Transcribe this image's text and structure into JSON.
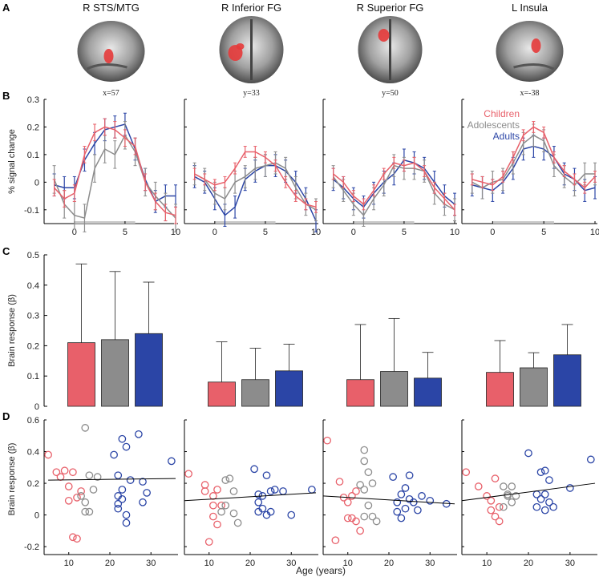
{
  "figure": {
    "panel_letters": [
      "A",
      "B",
      "C",
      "D"
    ],
    "regions": [
      {
        "name": "R STS/MTG",
        "coord": "x=57",
        "view": "sagittal-right"
      },
      {
        "name": "R Inferior FG",
        "coord": "y=33",
        "view": "coronal"
      },
      {
        "name": "R Superior FG",
        "coord": "y=50",
        "view": "coronal"
      },
      {
        "name": "L Insula",
        "coord": "x=-38",
        "view": "sagittal-left"
      }
    ],
    "groups": [
      {
        "name": "Children",
        "color": "#e8606a"
      },
      {
        "name": "Adolescents",
        "color": "#8c8c8c"
      },
      {
        "name": "Adults",
        "color": "#2b45a6"
      }
    ]
  },
  "chart_data": [
    {
      "panel": "B",
      "type": "line",
      "ylabel": "% signal change",
      "xlabel": "",
      "x": [
        -2,
        -1,
        0,
        1,
        2,
        3,
        4,
        5,
        6,
        7,
        8,
        9,
        10
      ],
      "xticks": [
        0,
        5,
        10
      ],
      "ylim": [
        -0.15,
        0.3
      ],
      "yticks": [
        -0.1,
        0,
        0.1,
        0.2,
        0.3
      ],
      "stim_interval": [
        0,
        6
      ],
      "subplots": [
        {
          "region": "R STS/MTG",
          "series": [
            {
              "name": "Children",
              "values": [
                -0.02,
                -0.06,
                -0.04,
                0.1,
                0.18,
                0.2,
                0.19,
                0.16,
                0.13,
                0.0,
                -0.07,
                -0.11,
                -0.12
              ],
              "err": 0.03
            },
            {
              "name": "Adolescents",
              "values": [
                0.01,
                -0.08,
                -0.12,
                -0.13,
                0.05,
                0.12,
                0.1,
                0.17,
                0.11,
                0.0,
                -0.05,
                -0.09,
                -0.13
              ],
              "err": 0.05
            },
            {
              "name": "Adults",
              "values": [
                -0.01,
                -0.02,
                -0.02,
                0.08,
                0.14,
                0.19,
                0.2,
                0.21,
                0.12,
                0.01,
                -0.07,
                -0.05,
                -0.05
              ],
              "err": 0.04
            }
          ]
        },
        {
          "region": "R Inferior FG",
          "series": [
            {
              "name": "Children",
              "values": [
                0.03,
                0.01,
                -0.01,
                0.0,
                0.05,
                0.11,
                0.11,
                0.09,
                0.06,
                0.0,
                -0.05,
                -0.08,
                -0.09
              ],
              "err": 0.02
            },
            {
              "name": "Adolescents",
              "values": [
                0.03,
                0.01,
                -0.04,
                -0.06,
                0.0,
                0.02,
                0.05,
                0.06,
                0.07,
                0.05,
                -0.02,
                -0.08,
                -0.1
              ],
              "err": 0.04
            },
            {
              "name": "Adults",
              "values": [
                0.02,
                0.0,
                -0.06,
                -0.12,
                -0.09,
                0.01,
                0.04,
                0.06,
                0.06,
                0.04,
                0.0,
                -0.06,
                -0.14
              ],
              "err": 0.04
            }
          ]
        },
        {
          "region": "R Superior FG",
          "series": [
            {
              "name": "Children",
              "values": [
                0.03,
                0.0,
                -0.05,
                -0.08,
                -0.03,
                0.03,
                0.07,
                0.06,
                0.07,
                0.04,
                -0.02,
                -0.06,
                -0.1
              ],
              "err": 0.02
            },
            {
              "name": "Adolescents",
              "values": [
                0.02,
                -0.03,
                -0.08,
                -0.12,
                -0.06,
                -0.01,
                0.06,
                0.05,
                0.05,
                0.04,
                -0.04,
                -0.08,
                -0.1
              ],
              "err": 0.04
            },
            {
              "name": "Adults",
              "values": [
                0.01,
                -0.02,
                -0.06,
                -0.09,
                -0.04,
                0.0,
                0.03,
                0.08,
                0.07,
                0.05,
                0.0,
                -0.05,
                -0.08
              ],
              "err": 0.04
            }
          ]
        },
        {
          "region": "L Insula",
          "series": [
            {
              "name": "Children",
              "values": [
                0.01,
                0.0,
                -0.01,
                0.02,
                0.09,
                0.17,
                0.2,
                0.18,
                0.09,
                0.04,
                0.01,
                -0.02,
                0.02
              ],
              "err": 0.02
            },
            {
              "name": "Adolescents",
              "values": [
                0.0,
                -0.02,
                0.0,
                0.01,
                0.07,
                0.14,
                0.17,
                0.15,
                0.06,
                0.02,
                -0.01,
                0.03,
                0.03
              ],
              "err": 0.04
            },
            {
              "name": "Adults",
              "values": [
                -0.01,
                -0.02,
                -0.03,
                0.0,
                0.05,
                0.12,
                0.13,
                0.12,
                0.09,
                0.03,
                0.01,
                -0.03,
                -0.02
              ],
              "err": 0.04
            }
          ]
        }
      ]
    },
    {
      "panel": "C",
      "type": "bar",
      "ylabel": "Brain response (β)",
      "ylim": [
        0,
        0.5
      ],
      "yticks": [
        0,
        0.1,
        0.2,
        0.3,
        0.4,
        0.5
      ],
      "categories": [
        "Children",
        "Adolescents",
        "Adults"
      ],
      "subplots": [
        {
          "region": "R STS/MTG",
          "values": [
            0.21,
            0.22,
            0.24
          ],
          "err": [
            0.26,
            0.225,
            0.17
          ]
        },
        {
          "region": "R Inferior FG",
          "values": [
            0.08,
            0.088,
            0.117
          ],
          "err": [
            0.133,
            0.104,
            0.088
          ]
        },
        {
          "region": "R Superior FG",
          "values": [
            0.088,
            0.115,
            0.093
          ],
          "err": [
            0.182,
            0.175,
            0.085
          ]
        },
        {
          "region": "L Insula",
          "values": [
            0.112,
            0.127,
            0.17
          ],
          "err": [
            0.105,
            0.05,
            0.1
          ]
        }
      ]
    },
    {
      "panel": "D",
      "type": "scatter",
      "ylabel": "Brain response (β)",
      "xlabel": "Age (years)",
      "xlim": [
        4,
        36
      ],
      "xticks": [
        10,
        20,
        30
      ],
      "ylim": [
        -0.25,
        0.6
      ],
      "yticks": [
        -0.2,
        0,
        0.2,
        0.4,
        0.6
      ],
      "subplots": [
        {
          "region": "R STS/MTG",
          "fit": [
            [
              5,
              0.22
            ],
            [
              36,
              0.23
            ]
          ],
          "points": {
            "Children": [
              [
                5,
                0.38
              ],
              [
                7,
                0.27
              ],
              [
                8,
                0.24
              ],
              [
                9,
                0.28
              ],
              [
                10,
                0.18
              ],
              [
                11,
                0.27
              ],
              [
                10,
                0.09
              ],
              [
                11,
                -0.14
              ],
              [
                12,
                -0.15
              ],
              [
                12,
                0.11
              ],
              [
                13,
                0.15
              ]
            ],
            "Adolescents": [
              [
                14,
                0.55
              ],
              [
                15,
                0.25
              ],
              [
                16,
                0.16
              ],
              [
                14,
                0.08
              ],
              [
                13,
                0.12
              ],
              [
                15,
                0.02
              ],
              [
                14,
                0.02
              ],
              [
                17,
                0.24
              ]
            ],
            "Adults": [
              [
                21,
                0.38
              ],
              [
                22,
                0.25
              ],
              [
                23,
                0.48
              ],
              [
                24,
                0.43
              ],
              [
                27,
                0.51
              ],
              [
                23,
                0.16
              ],
              [
                25,
                0.22
              ],
              [
                22,
                0.12
              ],
              [
                23,
                0.1
              ],
              [
                22,
                0.07
              ],
              [
                22,
                0.04
              ],
              [
                24,
                0.0
              ],
              [
                24,
                -0.05
              ],
              [
                28,
                0.21
              ],
              [
                29,
                0.14
              ],
              [
                28,
                0.08
              ],
              [
                35,
                0.34
              ]
            ]
          }
        },
        {
          "region": "R Inferior FG",
          "fit": [
            [
              4,
              0.09
            ],
            [
              36,
              0.14
            ]
          ],
          "points": {
            "Children": [
              [
                5,
                0.26
              ],
              [
                9,
                0.19
              ],
              [
                9,
                0.15
              ],
              [
                11,
                0.12
              ],
              [
                11,
                0.06
              ],
              [
                12,
                0.16
              ],
              [
                11,
                -0.01
              ],
              [
                12,
                -0.06
              ],
              [
                10,
                -0.17
              ],
              [
                13,
                0.06
              ]
            ],
            "Adolescents": [
              [
                14,
                0.22
              ],
              [
                15,
                0.23
              ],
              [
                16,
                0.15
              ],
              [
                14,
                0.06
              ],
              [
                16,
                0.01
              ],
              [
                17,
                -0.05
              ],
              [
                13,
                0.02
              ]
            ],
            "Adults": [
              [
                21,
                0.29
              ],
              [
                24,
                0.25
              ],
              [
                22,
                0.13
              ],
              [
                23,
                0.12
              ],
              [
                25,
                0.15
              ],
              [
                26,
                0.16
              ],
              [
                22,
                0.08
              ],
              [
                23,
                0.04
              ],
              [
                25,
                0.02
              ],
              [
                22,
                0.02
              ],
              [
                24,
                0.0
              ],
              [
                28,
                0.15
              ],
              [
                30,
                0.0
              ],
              [
                35,
                0.16
              ]
            ]
          }
        },
        {
          "region": "R Superior FG",
          "fit": [
            [
              4,
              0.12
            ],
            [
              36,
              0.07
            ]
          ],
          "points": {
            "Children": [
              [
                5,
                0.47
              ],
              [
                8,
                0.21
              ],
              [
                9,
                0.11
              ],
              [
                10,
                0.08
              ],
              [
                10,
                -0.02
              ],
              [
                11,
                -0.02
              ],
              [
                7,
                -0.16
              ],
              [
                12,
                -0.04
              ],
              [
                12,
                0.15
              ],
              [
                11,
                0.12
              ],
              [
                13,
                -0.1
              ]
            ],
            "Adolescents": [
              [
                14,
                0.41
              ],
              [
                14,
                0.34
              ],
              [
                15,
                0.27
              ],
              [
                13,
                0.19
              ],
              [
                16,
                0.2
              ],
              [
                14,
                0.16
              ],
              [
                15,
                0.06
              ],
              [
                16,
                -0.01
              ],
              [
                14,
                -0.01
              ],
              [
                17,
                -0.04
              ]
            ],
            "Adults": [
              [
                21,
                0.24
              ],
              [
                25,
                0.25
              ],
              [
                23,
                0.13
              ],
              [
                24,
                0.17
              ],
              [
                22,
                0.08
              ],
              [
                25,
                0.1
              ],
              [
                26,
                0.08
              ],
              [
                22,
                0.02
              ],
              [
                24,
                0.04
              ],
              [
                27,
                0.03
              ],
              [
                23,
                -0.02
              ],
              [
                28,
                0.12
              ],
              [
                30,
                0.09
              ],
              [
                34,
                0.07
              ]
            ]
          }
        },
        {
          "region": "L Insula",
          "fit": [
            [
              4,
              0.09
            ],
            [
              36,
              0.2
            ]
          ],
          "points": {
            "Children": [
              [
                5,
                0.27
              ],
              [
                8,
                0.18
              ],
              [
                10,
                0.12
              ],
              [
                11,
                0.09
              ],
              [
                12,
                0.23
              ],
              [
                11,
                0.03
              ],
              [
                12,
                -0.01
              ],
              [
                13,
                0.05
              ],
              [
                13,
                -0.04
              ]
            ],
            "Adolescents": [
              [
                14,
                0.18
              ],
              [
                16,
                0.18
              ],
              [
                15,
                0.13
              ],
              [
                15,
                0.12
              ],
              [
                17,
                0.12
              ],
              [
                16,
                0.08
              ],
              [
                14,
                0.05
              ]
            ],
            "Adults": [
              [
                20,
                0.39
              ],
              [
                23,
                0.27
              ],
              [
                24,
                0.28
              ],
              [
                25,
                0.22
              ],
              [
                24,
                0.13
              ],
              [
                22,
                0.13
              ],
              [
                23,
                0.1
              ],
              [
                25,
                0.08
              ],
              [
                22,
                0.05
              ],
              [
                24,
                0.03
              ],
              [
                26,
                0.05
              ],
              [
                30,
                0.17
              ],
              [
                35,
                0.35
              ]
            ]
          }
        }
      ]
    }
  ]
}
